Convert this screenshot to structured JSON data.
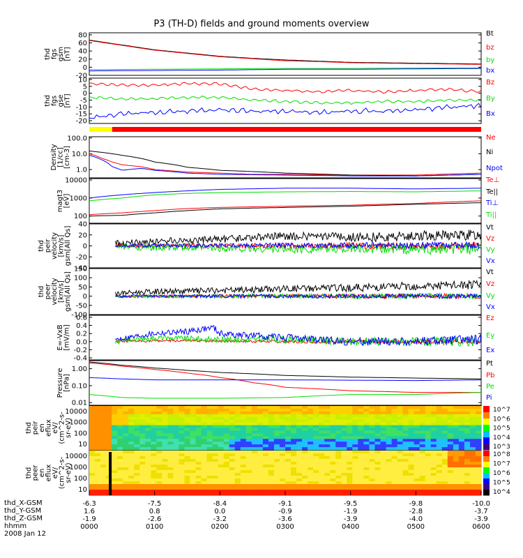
{
  "title": "P3 (TH-D) fields and ground moments overview",
  "colors": {
    "black": "#000000",
    "red": "#ff0000",
    "green": "#00dd00",
    "blue": "#0000ff",
    "yellow": "#ffff00"
  },
  "footer": {
    "row_labels": [
      "thd_X-GSM",
      "thd_Y-GSM",
      "thd_Z-GSM",
      "hhmm",
      "2008 Jan 12"
    ],
    "date": "2008 Jan 12",
    "ticks": [
      {
        "x": "-6.3",
        "y": "1.6",
        "z": "-1.9",
        "t": "0000"
      },
      {
        "x": "-7.5",
        "y": "0.8",
        "z": "-2.6",
        "t": "0100"
      },
      {
        "x": "-8.4",
        "y": "0.0",
        "z": "-3.2",
        "t": "0200"
      },
      {
        "x": "-9.1",
        "y": "-0.9",
        "z": "-3.6",
        "t": "0300"
      },
      {
        "x": "-9.5",
        "y": "-1.9",
        "z": "-3.9",
        "t": "0400"
      },
      {
        "x": "-9.8",
        "y": "-2.8",
        "z": "-4.0",
        "t": "0500"
      },
      {
        "x": "-10.0",
        "y": "-3.7",
        "z": "-3.9",
        "t": "0600"
      }
    ]
  },
  "chart_data": [
    {
      "id": "fgs-gsm",
      "type": "line",
      "ylabel": "thd\nfgs\ngsm\n[nT]",
      "yticks": [
        "80",
        "60",
        "40",
        "20",
        "0",
        "-20"
      ],
      "ylim": [
        -20,
        85
      ],
      "series": [
        {
          "name": "Bt",
          "color": "black",
          "x": [
            0,
            0.5,
            1,
            1.5,
            2,
            2.5,
            3,
            3.5,
            4,
            4.5,
            5,
            5.5,
            6
          ],
          "y": [
            67,
            55,
            43,
            35,
            27,
            22,
            18,
            15,
            12,
            11,
            10,
            9,
            8
          ]
        },
        {
          "name": "bz",
          "color": "red",
          "x": [
            0,
            0.5,
            1,
            1.5,
            2,
            2.5,
            3,
            3.5,
            4,
            4.5,
            5,
            5.5,
            6
          ],
          "y": [
            66,
            54,
            42,
            34,
            26,
            21,
            16,
            14,
            11,
            10,
            9,
            8,
            7
          ]
        },
        {
          "name": "by",
          "color": "green",
          "x": [
            0,
            1,
            2,
            3,
            4,
            5,
            6
          ],
          "y": [
            -6,
            -5,
            -4,
            -3,
            -3,
            -2,
            -2
          ]
        },
        {
          "name": "bx",
          "color": "blue",
          "x": [
            0,
            1,
            2,
            3,
            4,
            5,
            6
          ],
          "y": [
            -9,
            -8,
            -7,
            -5,
            -5,
            -4,
            -3
          ]
        }
      ]
    },
    {
      "id": "fgs-gse",
      "type": "line",
      "ylabel": "thd\nfgs\ngse\n[nT]",
      "yticks": [
        "10",
        "5",
        "0",
        "-5",
        "-10",
        "-15",
        "-20"
      ],
      "ylim": [
        -22,
        11
      ],
      "series": [
        {
          "name": "Bz",
          "color": "red",
          "x": [
            0,
            0.5,
            1,
            1.5,
            2,
            2.5,
            3,
            3.5,
            4,
            4.5,
            5,
            5.5,
            6
          ],
          "y": [
            7,
            6,
            6,
            7,
            7,
            3,
            2,
            1,
            2,
            1,
            2,
            3,
            1
          ]
        },
        {
          "name": "By",
          "color": "green",
          "x": [
            0,
            0.5,
            1,
            1.5,
            2,
            2.5,
            3,
            3.5,
            4,
            4.5,
            5,
            5.5,
            6
          ],
          "y": [
            -3,
            -4,
            -4,
            -3,
            -3,
            -5,
            -6,
            -7,
            -7,
            -6,
            -6,
            -5,
            -5
          ]
        },
        {
          "name": "Bx",
          "color": "blue",
          "x": [
            0,
            0.5,
            1,
            1.5,
            2,
            2.5,
            3,
            3.5,
            4,
            4.5,
            5,
            5.5,
            6
          ],
          "y": [
            -18,
            -15,
            -14,
            -13,
            -12,
            -13,
            -13,
            -14,
            -13,
            -13,
            -12,
            -10,
            -9
          ]
        }
      ]
    },
    {
      "id": "mode-bar",
      "type": "bar",
      "segments": [
        {
          "x0": 0,
          "x1": 0.35,
          "color": "yellow"
        },
        {
          "x0": 0.35,
          "x1": 6,
          "color": "red"
        }
      ]
    },
    {
      "id": "density",
      "type": "line",
      "scale": "log",
      "ylabel": "Density\n[1/cc]\n[cm-3]",
      "yticks": [
        "100.0",
        "10.0",
        "1.0"
      ],
      "ylim": [
        0.3,
        120
      ],
      "series": [
        {
          "name": "Ne",
          "color": "red",
          "x": [
            0,
            0.2,
            0.35,
            0.5,
            0.8,
            1,
            1.5,
            2,
            2.5,
            3,
            4,
            5,
            6
          ],
          "y": [
            10,
            5,
            3,
            2,
            1.5,
            1.0,
            0.7,
            0.6,
            0.5,
            0.5,
            0.45,
            0.45,
            0.6
          ]
        },
        {
          "name": "Ni",
          "color": "black",
          "x": [
            0,
            0.5,
            1,
            1.5,
            2,
            3,
            4,
            5,
            6
          ],
          "y": [
            15,
            8,
            3,
            1.4,
            0.9,
            0.6,
            0.45,
            0.4,
            0.5
          ]
        },
        {
          "name": "Npot",
          "color": "blue",
          "x": [
            0,
            0.2,
            0.35,
            0.5,
            0.8,
            1,
            1.5,
            2,
            3,
            4,
            5,
            6
          ],
          "y": [
            8,
            4,
            1.5,
            0.9,
            1.2,
            0.9,
            0.6,
            0.5,
            0.45,
            0.4,
            0.4,
            0.5
          ]
        }
      ]
    },
    {
      "id": "temperature",
      "type": "line",
      "scale": "log",
      "ylabel": "magt3\n[eV]",
      "yticks": [
        "10000",
        "1000",
        "100"
      ],
      "ylim": [
        40,
        12000
      ],
      "series": [
        {
          "name": "Te⊥",
          "color": "red",
          "x": [
            0,
            0.5,
            1,
            1.5,
            2,
            3,
            4,
            5,
            6
          ],
          "y": [
            120,
            150,
            200,
            260,
            300,
            350,
            400,
            500,
            700
          ]
        },
        {
          "name": "Te||",
          "color": "black",
          "x": [
            0,
            0.5,
            1,
            1.5,
            2,
            3,
            4,
            5,
            6
          ],
          "y": [
            100,
            110,
            150,
            200,
            250,
            300,
            350,
            450,
            550
          ]
        },
        {
          "name": "Ti⊥",
          "color": "blue",
          "x": [
            0,
            0.5,
            1,
            1.5,
            2,
            3,
            4,
            5,
            6
          ],
          "y": [
            1000,
            1500,
            2000,
            2500,
            3000,
            3500,
            3500,
            3200,
            3500
          ]
        },
        {
          "name": "Ti||",
          "color": "green",
          "x": [
            0,
            0.5,
            1,
            1.5,
            2,
            3,
            4,
            5,
            6
          ],
          "y": [
            700,
            1000,
            1500,
            1800,
            2000,
            2200,
            2300,
            2200,
            2500
          ]
        }
      ]
    },
    {
      "id": "peir-velocity",
      "type": "line",
      "ylabel": "thd\npeir\nvelocity\n[km/s]\ngsm[All Qs]",
      "yticks": [
        "40",
        "20",
        "0",
        "-20",
        "-40"
      ],
      "ylim": [
        -40,
        40
      ],
      "series": [
        {
          "name": "Vt",
          "color": "black",
          "x": [
            0.4,
            1,
            2,
            3,
            4,
            5,
            6
          ],
          "y": [
            5,
            8,
            12,
            18,
            15,
            18,
            20
          ]
        },
        {
          "name": "Vz",
          "color": "red",
          "x": [
            0.4,
            1,
            2,
            3,
            4,
            5,
            6
          ],
          "y": [
            0,
            0,
            0,
            0,
            0,
            0,
            0
          ]
        },
        {
          "name": "Vy",
          "color": "green",
          "x": [
            0.4,
            1,
            2,
            3,
            4,
            5,
            6
          ],
          "y": [
            -2,
            -3,
            -4,
            -6,
            -5,
            -6,
            -6
          ]
        },
        {
          "name": "Vx",
          "color": "blue",
          "x": [
            0.4,
            1,
            2,
            3,
            4,
            5,
            6
          ],
          "y": [
            0,
            0,
            1,
            1,
            1,
            1,
            1
          ]
        }
      ]
    },
    {
      "id": "peer-velocity",
      "type": "line",
      "ylabel": "thd\npeer\nvelocity\n[km/s]\ngsm[All Qs]",
      "yticks": [
        "150",
        "100",
        "50",
        "0",
        "-50",
        "-100"
      ],
      "ylim": [
        -100,
        150
      ],
      "series": [
        {
          "name": "Vt",
          "color": "black",
          "x": [
            0.4,
            1,
            2,
            3,
            4,
            5,
            6
          ],
          "y": [
            15,
            25,
            30,
            40,
            45,
            55,
            60
          ]
        },
        {
          "name": "Vz",
          "color": "red",
          "x": [
            0.4,
            1,
            2,
            3,
            4,
            5,
            6
          ],
          "y": [
            0,
            0,
            0,
            0,
            0,
            0,
            0
          ]
        },
        {
          "name": "Vy",
          "color": "green",
          "x": [
            0.4,
            1,
            2,
            3,
            4,
            5,
            6
          ],
          "y": [
            0,
            0,
            0,
            0,
            0,
            0,
            0
          ]
        },
        {
          "name": "Vx",
          "color": "blue",
          "x": [
            0.4,
            1,
            2,
            3,
            4,
            5,
            6
          ],
          "y": [
            0,
            0,
            0,
            0,
            0,
            0,
            0
          ]
        }
      ]
    },
    {
      "id": "e-field",
      "type": "line",
      "ylabel": "E=-VxB\n[mV/m]",
      "yticks": [
        "0.6",
        "0.4",
        "0.2",
        "0.0",
        "-0.2",
        "-0.4"
      ],
      "ylim": [
        -0.45,
        0.65
      ],
      "series": [
        {
          "name": "Ez",
          "color": "red",
          "x": [
            0.4,
            1,
            2,
            3,
            4,
            5,
            6
          ],
          "y": [
            0.0,
            0.02,
            0.02,
            0.0,
            0.0,
            0.0,
            0.0
          ]
        },
        {
          "name": "Ey",
          "color": "green",
          "x": [
            0.4,
            1,
            2,
            3,
            4,
            5,
            6
          ],
          "y": [
            0.0,
            0.1,
            0.05,
            0.05,
            0.0,
            0.0,
            0.0
          ]
        },
        {
          "name": "Ex",
          "color": "blue",
          "x": [
            0.4,
            1,
            1.5,
            1.9,
            2,
            3,
            4,
            5,
            6
          ],
          "y": [
            0.05,
            0.2,
            0.25,
            0.35,
            0.2,
            0.1,
            0.0,
            0.0,
            0.05
          ]
        }
      ]
    },
    {
      "id": "pressure",
      "type": "line",
      "scale": "log",
      "ylabel": "Pressure\n[nPa]",
      "yticks": [
        "1.00",
        "0.10",
        "0.01"
      ],
      "ylim": [
        0.007,
        3
      ],
      "series": [
        {
          "name": "Pt",
          "color": "black",
          "x": [
            0,
            0.5,
            1,
            1.5,
            2,
            2.5,
            3,
            4,
            5,
            6
          ],
          "y": [
            2.5,
            1.6,
            1.1,
            0.8,
            0.6,
            0.5,
            0.4,
            0.32,
            0.28,
            0.25
          ]
        },
        {
          "name": "Pb",
          "color": "red",
          "x": [
            0,
            0.5,
            1,
            1.5,
            2,
            2.5,
            3,
            4,
            5,
            6
          ],
          "y": [
            2.2,
            1.4,
            0.9,
            0.55,
            0.3,
            0.15,
            0.08,
            0.05,
            0.04,
            0.04
          ]
        },
        {
          "name": "Pe",
          "color": "green",
          "x": [
            0,
            0.5,
            1,
            1.5,
            2,
            3,
            4,
            5,
            6
          ],
          "y": [
            0.03,
            0.02,
            0.018,
            0.018,
            0.018,
            0.02,
            0.03,
            0.03,
            0.04
          ]
        },
        {
          "name": "Pi",
          "color": "blue",
          "x": [
            0,
            0.5,
            1,
            1.5,
            2,
            3,
            4,
            5,
            6
          ],
          "y": [
            0.3,
            0.25,
            0.22,
            0.22,
            0.22,
            0.22,
            0.21,
            0.2,
            0.22
          ]
        }
      ]
    },
    {
      "id": "peir-spectrogram",
      "type": "heatmap",
      "ylabel": "thd\npeir\nen\neflux\neV/\n(cm^2-s-\nsr-eV)",
      "yticks": [
        "10000",
        "1000",
        "100",
        "10"
      ],
      "colorbar": [
        "10^7",
        "10^6",
        "10^5",
        "10^4",
        "10^3"
      ]
    },
    {
      "id": "peer-spectrogram",
      "type": "heatmap",
      "ylabel": "thd\npeer\nen\neflux\neV/\n(cm^2-s-\nsr-eV)",
      "yticks": [
        "10000",
        "1000",
        "100",
        "10"
      ],
      "colorbar": [
        "10^8",
        "10^7",
        "10^6",
        "10^5",
        "10^4"
      ]
    }
  ]
}
